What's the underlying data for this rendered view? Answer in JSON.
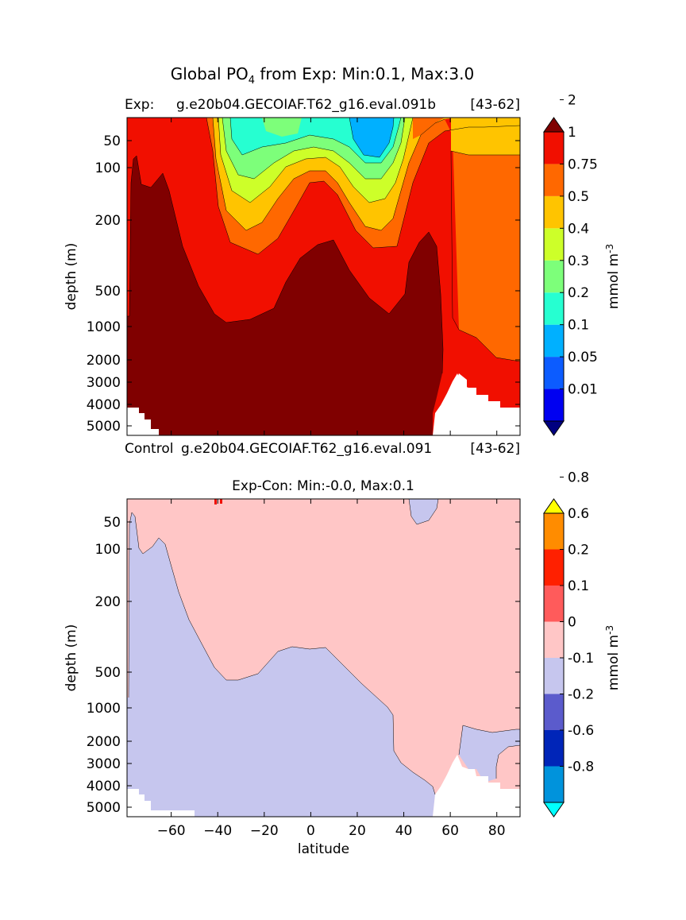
{
  "figure": {
    "title_prefix": "Global PO",
    "title_sub": "4",
    "title_suffix": " from Exp: Min:0.1, Max:3.0"
  },
  "top_panel": {
    "exp_label": "Exp:",
    "exp_case": "g.e20b04.GECOIAF.T62_g16.eval.091b",
    "exp_years": "[43-62]",
    "control_label": "Control",
    "control_case": "g.e20b04.GECOIAF.T62_g16.eval.091",
    "control_years": "[43-62]"
  },
  "bottom_panel": {
    "title": "Exp-Con: Min:-0.0, Max:0.1"
  },
  "chart_data": [
    {
      "type": "contourf",
      "name": "Experiment PO4 section",
      "xlabel": "",
      "ylabel": "depth (m)",
      "xlim": [
        -79,
        90
      ],
      "y_ticks": [
        "50",
        "100",
        "200",
        "500",
        "1000",
        "2000",
        "3000",
        "4000",
        "5000"
      ],
      "colorbar_label": "mmol m",
      "colorbar_label_sup": "-3",
      "colorbar_levels": [
        "0.01",
        "0.05",
        "0.1",
        "0.2",
        "0.3",
        "0.4",
        "0.5",
        "0.75",
        "1",
        "2"
      ],
      "colorbar_colors": [
        "#000080",
        "#0000f1",
        "#0c5cff",
        "#00b0ff",
        "#26ffd1",
        "#7dff7a",
        "#cdff29",
        "#ffc400",
        "#ff6800",
        "#f10f00",
        "#800000"
      ],
      "extend": "both"
    },
    {
      "type": "contourf",
      "name": "Exp-Con difference",
      "xlabel": "latitude",
      "ylabel": "depth (m)",
      "xlim": [
        -79,
        90
      ],
      "x_ticks": [
        "−60",
        "−40",
        "−20",
        "0",
        "20",
        "40",
        "60",
        "80"
      ],
      "y_ticks": [
        "50",
        "100",
        "200",
        "500",
        "1000",
        "2000",
        "3000",
        "4000",
        "5000"
      ],
      "colorbar_label": "mmol m",
      "colorbar_label_sup": "-3",
      "colorbar_levels": [
        "-0.8",
        "-0.6",
        "-0.2",
        "-0.1",
        "0",
        "0.1",
        "0.2",
        "0.6",
        "0.8"
      ],
      "colorbar_colors": [
        "#00ffff",
        "#0093dc",
        "#0025b8",
        "#5b5bcc",
        "#c6c6ee",
        "#ffc6c6",
        "#ff5b5b",
        "#ff2000",
        "#ff8c00",
        "#ffff00"
      ],
      "extend": "both"
    }
  ]
}
